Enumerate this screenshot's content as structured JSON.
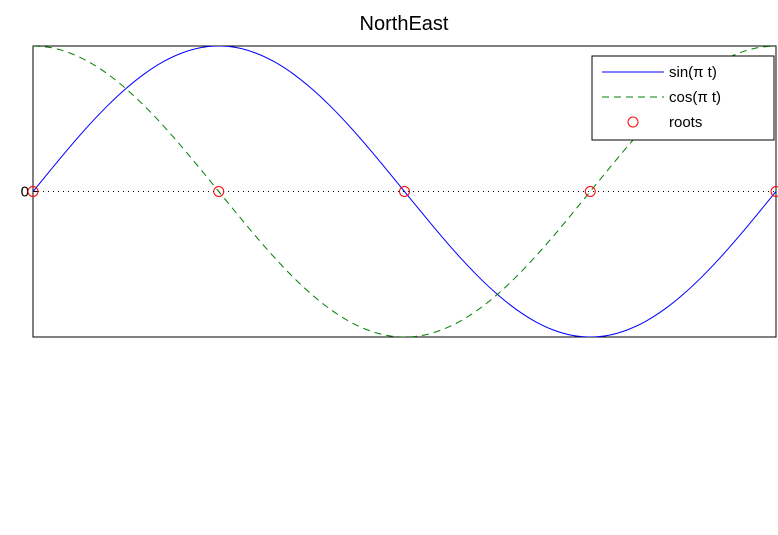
{
  "chart_data": {
    "type": "line",
    "title": "NorthEast",
    "xlabel": "",
    "ylabel": "",
    "xlim": [
      0,
      2
    ],
    "ylim": [
      -1,
      1
    ],
    "yticks": [
      0
    ],
    "ytick_labels": [
      "0"
    ],
    "grid": false,
    "zero_line": "dotted",
    "legend_location": "top-right",
    "x": [
      0,
      0.05,
      0.1,
      0.15,
      0.2,
      0.25,
      0.3,
      0.35,
      0.4,
      0.45,
      0.5,
      0.55,
      0.6,
      0.65,
      0.7,
      0.75,
      0.8,
      0.85,
      0.9,
      0.95,
      1.0,
      1.05,
      1.1,
      1.15,
      1.2,
      1.25,
      1.3,
      1.35,
      1.4,
      1.45,
      1.5,
      1.55,
      1.6,
      1.65,
      1.7,
      1.75,
      1.8,
      1.85,
      1.9,
      1.95,
      2.0
    ],
    "series": [
      {
        "name": "sin(π t)",
        "color": "#0000ff",
        "line_style": "solid",
        "values": [
          0,
          0.156,
          0.309,
          0.454,
          0.588,
          0.707,
          0.809,
          0.891,
          0.951,
          0.988,
          1.0,
          0.988,
          0.951,
          0.891,
          0.809,
          0.707,
          0.588,
          0.454,
          0.309,
          0.156,
          0,
          -0.156,
          -0.309,
          -0.454,
          -0.588,
          -0.707,
          -0.809,
          -0.891,
          -0.951,
          -0.988,
          -1.0,
          -0.988,
          -0.951,
          -0.891,
          -0.809,
          -0.707,
          -0.588,
          -0.454,
          -0.309,
          -0.156,
          0
        ]
      },
      {
        "name": "cos(π t)",
        "color": "#007f00",
        "line_style": "dashed",
        "values": [
          1.0,
          0.988,
          0.951,
          0.891,
          0.809,
          0.707,
          0.588,
          0.454,
          0.309,
          0.156,
          0,
          -0.156,
          -0.309,
          -0.454,
          -0.588,
          -0.707,
          -0.809,
          -0.891,
          -0.951,
          -0.988,
          -1.0,
          -0.988,
          -0.951,
          -0.891,
          -0.809,
          -0.707,
          -0.588,
          -0.454,
          -0.309,
          -0.156,
          0,
          0.156,
          0.309,
          0.454,
          0.588,
          0.707,
          0.809,
          0.891,
          0.951,
          0.988,
          1.0
        ]
      }
    ],
    "markers": {
      "name": "roots",
      "color": "#ff0000",
      "symbol": "circle",
      "x": [
        0,
        0.5,
        1.0,
        1.5,
        2.0
      ],
      "y": [
        0,
        0,
        0,
        0,
        0
      ]
    }
  }
}
